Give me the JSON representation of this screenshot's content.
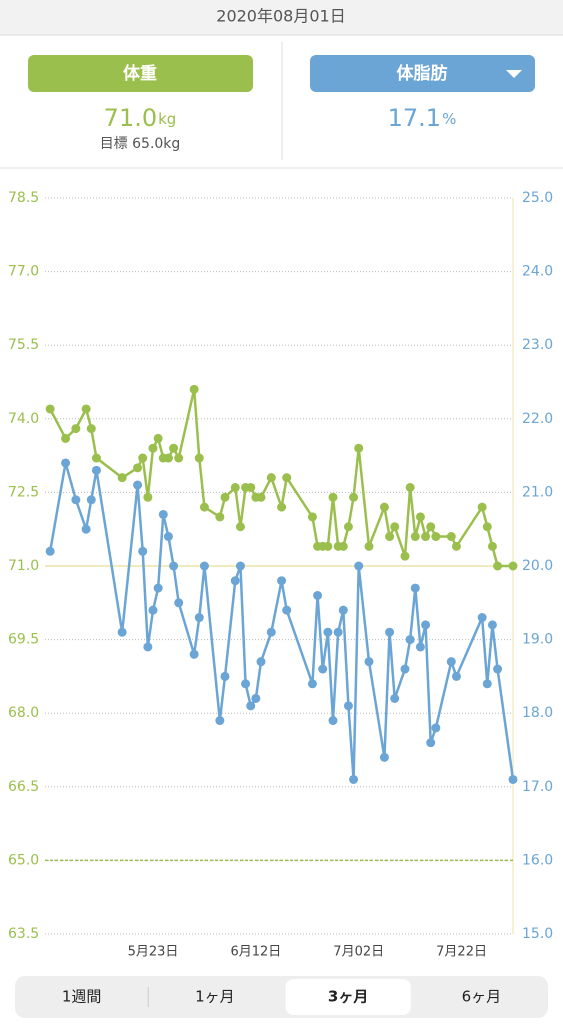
{
  "header": {
    "date": "2020年08月01日"
  },
  "summary": [
    {
      "label": "体重",
      "value": "71.0",
      "unit": "kg",
      "goal": "目標 65.0kg",
      "color": "#9bbf4c"
    },
    {
      "label": "体脂肪",
      "value": "17.1",
      "unit": "%",
      "color": "#6aa5d6"
    }
  ],
  "chart_data": {
    "type": "line",
    "x": [
      "05-03",
      "05-06",
      "05-08",
      "05-10",
      "05-11",
      "05-12",
      "05-17",
      "05-20",
      "05-21",
      "05-22",
      "05-23",
      "05-24",
      "05-25",
      "05-26",
      "05-27",
      "05-28",
      "05-31",
      "06-01",
      "06-02",
      "06-05",
      "06-06",
      "06-08",
      "06-09",
      "06-10",
      "06-11",
      "06-12",
      "06-13",
      "06-15",
      "06-17",
      "06-18",
      "06-23",
      "06-24",
      "06-25",
      "06-26",
      "06-27",
      "06-28",
      "06-29",
      "06-30",
      "07-01",
      "07-02",
      "07-04",
      "07-07",
      "07-08",
      "07-09",
      "07-11",
      "07-12",
      "07-13",
      "07-14",
      "07-15",
      "07-16",
      "07-17",
      "07-20",
      "07-21",
      "07-26",
      "07-27",
      "07-28",
      "07-29",
      "08-01"
    ],
    "series": [
      {
        "color": "#9bbf4c",
        "axis": "y",
        "values": [
          74.2,
          73.6,
          73.8,
          74.2,
          73.8,
          73.2,
          72.8,
          73.0,
          73.2,
          72.4,
          73.4,
          73.6,
          73.2,
          73.2,
          73.4,
          73.2,
          74.6,
          73.2,
          72.2,
          72.0,
          72.4,
          72.6,
          71.8,
          72.6,
          72.6,
          72.4,
          72.4,
          72.8,
          72.2,
          72.8,
          72.0,
          71.4,
          71.4,
          71.4,
          72.4,
          71.4,
          71.4,
          71.8,
          72.4,
          73.4,
          71.4,
          72.2,
          71.6,
          71.8,
          71.2,
          72.6,
          71.6,
          72.0,
          71.6,
          71.8,
          71.6,
          71.6,
          71.4,
          72.2,
          71.8,
          71.4,
          71.0,
          71.0
        ]
      },
      {
        "color": "#6aa5d6",
        "axis": "y2",
        "values": [
          20.2,
          21.4,
          20.9,
          20.5,
          20.9,
          21.3,
          19.1,
          21.1,
          20.2,
          18.9,
          19.4,
          19.7,
          20.7,
          20.4,
          20.0,
          19.5,
          18.8,
          19.3,
          20.0,
          17.9,
          18.5,
          19.8,
          20.0,
          18.4,
          18.1,
          18.2,
          18.7,
          19.1,
          19.8,
          19.4,
          18.4,
          19.6,
          18.6,
          19.1,
          17.9,
          19.1,
          19.4,
          18.1,
          17.1,
          20.0,
          18.7,
          17.4,
          19.1,
          18.2,
          18.6,
          19.0,
          19.7,
          18.9,
          19.2,
          17.6,
          17.8,
          18.7,
          18.5,
          19.3,
          18.4,
          19.2,
          18.6,
          17.1
        ]
      }
    ],
    "xlim": [
      "05-02",
      "08-01"
    ],
    "xticks": [
      {
        "value": "05-23",
        "label": "5月23日"
      },
      {
        "value": "06-12",
        "label": "6月12日"
      },
      {
        "value": "07-02",
        "label": "7月02日"
      },
      {
        "value": "07-22",
        "label": "7月22日"
      }
    ],
    "ylim": [
      63.5,
      78.5
    ],
    "yticks": [
      63.5,
      {
        "value": 65,
        "label": "65.0"
      },
      66.5,
      {
        "value": 68,
        "label": "68.0"
      },
      69.5,
      {
        "value": 71,
        "label": "71.0"
      },
      72.5,
      {
        "value": 74,
        "label": "74.0"
      },
      75.5,
      {
        "value": 77,
        "label": "77.0"
      },
      78.5
    ],
    "y2lim": [
      15,
      25
    ],
    "y2ticks": [
      {
        "value": 15,
        "label": "15.0"
      },
      {
        "value": 16,
        "label": "16.0"
      },
      {
        "value": 17,
        "label": "17.0"
      },
      {
        "value": 18,
        "label": "18.0"
      },
      {
        "value": 19,
        "label": "19.0"
      },
      {
        "value": 20,
        "label": "20.0"
      },
      {
        "value": 21,
        "label": "21.0"
      },
      {
        "value": 22,
        "label": "22.0"
      },
      {
        "value": 23,
        "label": "23.0"
      },
      {
        "value": 24,
        "label": "24.0"
      },
      {
        "value": 25,
        "label": "25.0"
      }
    ],
    "grid": true,
    "reference_lines": [
      {
        "value": 71,
        "color": "#ece3a6",
        "dashed": false
      },
      {
        "value": 65,
        "color": "#9bbf4c",
        "dashed": true
      }
    ]
  },
  "tabs": {
    "items": [
      "1週間",
      "1ヶ月",
      "3ヶ月",
      "6ヶ月"
    ],
    "selected": 2
  }
}
